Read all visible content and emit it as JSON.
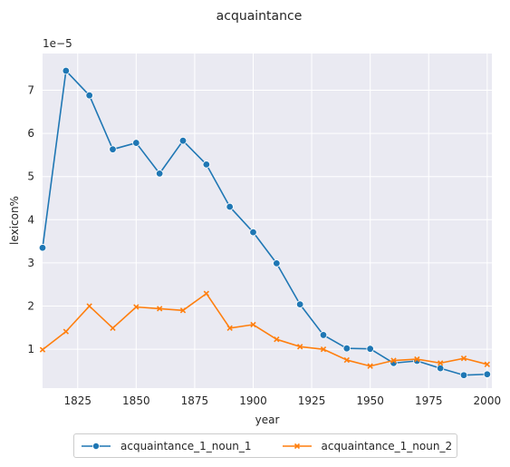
{
  "chart_data": {
    "type": "line",
    "title": "acquaintance",
    "xlabel": "year",
    "ylabel": "lexicon%",
    "y_offset_label": "1e−5",
    "xlim": [
      1810,
      2002
    ],
    "ylim": [
      0.1,
      7.85
    ],
    "y_scale_exponent": -5,
    "grid": true,
    "background_color": "#eaeaf2",
    "legend_position": "bottom-center",
    "xticks": [
      1825,
      1850,
      1875,
      1900,
      1925,
      1950,
      1975,
      2000
    ],
    "yticks": [
      1,
      2,
      3,
      4,
      5,
      6,
      7
    ],
    "x": [
      1810,
      1820,
      1830,
      1840,
      1850,
      1860,
      1870,
      1880,
      1890,
      1900,
      1910,
      1920,
      1930,
      1940,
      1950,
      1960,
      1970,
      1980,
      1990,
      2000
    ],
    "series": [
      {
        "name": "acquaintance_1_noun_1",
        "color": "#1f77b4",
        "marker": "circle",
        "values": [
          3.35,
          7.45,
          6.88,
          5.63,
          5.78,
          5.07,
          5.83,
          5.28,
          4.3,
          3.71,
          2.99,
          2.04,
          1.33,
          1.02,
          1.01,
          0.68,
          0.73,
          0.56,
          0.4,
          0.42
        ]
      },
      {
        "name": "acquaintance_1_noun_2",
        "color": "#ff7f0e",
        "marker": "x",
        "values": [
          0.99,
          1.41,
          2.0,
          1.49,
          1.98,
          1.94,
          1.9,
          2.29,
          1.49,
          1.57,
          1.23,
          1.06,
          1.0,
          0.75,
          0.61,
          0.74,
          0.77,
          0.68,
          0.79,
          0.65
        ]
      }
    ]
  }
}
